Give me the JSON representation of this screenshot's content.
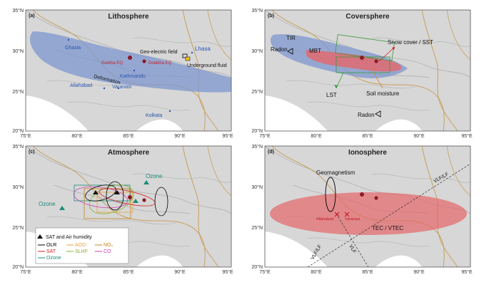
{
  "panels": [
    {
      "letter": "(a)",
      "title": "Lithosphere",
      "places": {
        "ghaziabad": "Ghazia",
        "lhasa": "Lhasa",
        "kathmandu": "Kathmandu",
        "allahabad": "Allahabad",
        "varanasi": "Varanasi",
        "kolkata": "Kolkata"
      },
      "events": {
        "gorkha": "Gorkha EQ",
        "dolakha": "Dolakha EQ"
      },
      "annotations": {
        "geo_electric": "Geo-electric field",
        "underground_fluid": "Underground fluid",
        "deformation": "Deformation"
      }
    },
    {
      "letter": "(b)",
      "title": "Coversphere",
      "annotations": {
        "tir": "TIR",
        "radon_top": "Radon",
        "mbt": "MBT",
        "snow": "Snow cover / SST",
        "lst": "LST",
        "soil": "Soil moisture",
        "radon_bottom": "Radon"
      }
    },
    {
      "letter": "(c)",
      "title": "Atmosphere",
      "annotations": {
        "ozone_top": "Ozone",
        "ozone_left": "Ozone"
      },
      "legend": {
        "header": "SAT and Air humidity",
        "items": [
          {
            "label": "OLR",
            "color": "#000000"
          },
          {
            "label": "AOD",
            "color": "#e8a33a"
          },
          {
            "label": "NO₂",
            "color": "#c8821e"
          },
          {
            "label": "SAT",
            "color": "#d22020"
          },
          {
            "label": "SLHF",
            "color": "#8ab02a"
          },
          {
            "label": "CO",
            "color": "#d23bb0"
          },
          {
            "label": "Ozone",
            "color": "#1a8a78"
          }
        ]
      }
    },
    {
      "letter": "(d)",
      "title": "Ionosphere",
      "annotations": {
        "geomagnetism": "Geomagnetism",
        "vlf_top": "VLF/LF",
        "tec": "TEC / VTEC",
        "allahabad": "Allahabad",
        "varanasi": "Varanasi",
        "vlf_left": "VLF/LF",
        "vlf_bottom": "VLF"
      }
    }
  ],
  "axes": {
    "lat_labels": [
      "35°N",
      "30°N",
      "25°N",
      "20°N"
    ],
    "lon_labels": [
      "75°E",
      "80°E",
      "85°E",
      "90°E",
      "95°E"
    ]
  },
  "colors": {
    "land": "#d7d7d7",
    "border": "#b0b0b0",
    "river": "#c9a060",
    "blue_zone": "#7e97cf",
    "red_zone": "#e5666a",
    "epicenter": "#8b1a2a"
  }
}
